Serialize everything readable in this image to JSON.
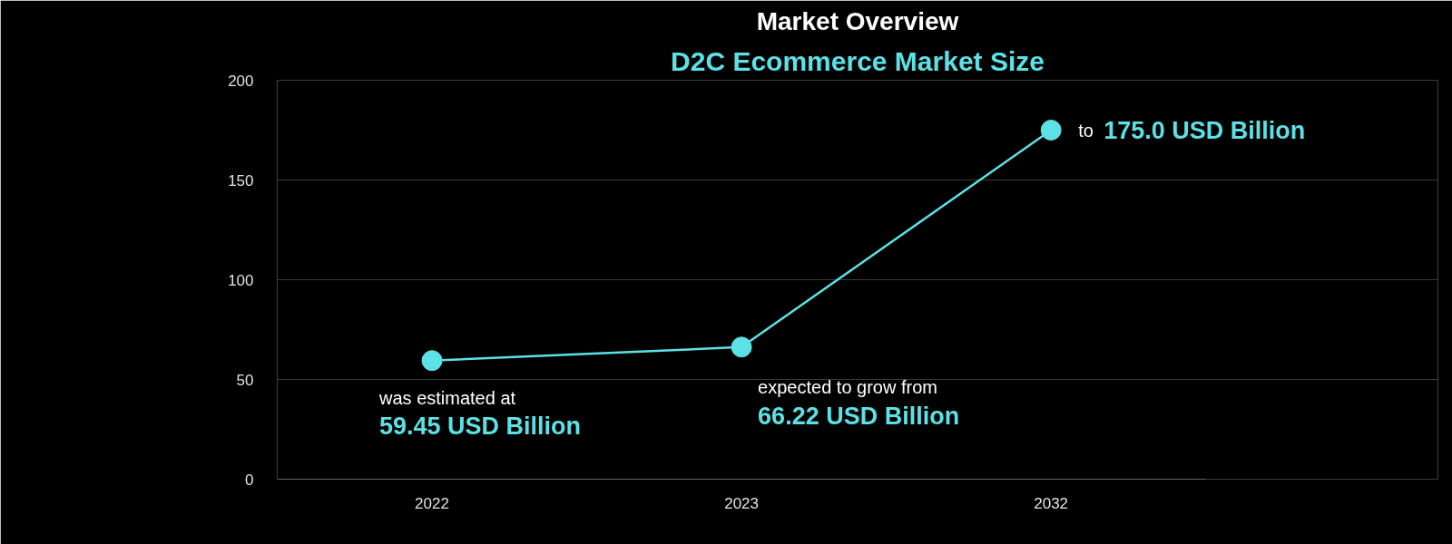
{
  "chart_data": {
    "type": "line",
    "title": "Market Overview",
    "subtitle": "D2C Ecommerce Market Size",
    "categories": [
      "2022",
      "2023",
      "2032"
    ],
    "series": [
      {
        "color": "#5ce1e6",
        "values": [
          59.45,
          66.22,
          175.0
        ],
        "value_labels": [
          "59.45 USD Billion",
          "66.22 USD Billion",
          "175.0 USD Billion"
        ]
      }
    ],
    "annotations": [
      {
        "text": "was estimated at",
        "x": "2022",
        "y": 59.45
      },
      {
        "text": "expected to grow from",
        "x": "2023",
        "y": 66.22
      },
      {
        "text": "to",
        "x": "2032",
        "y": 175.0
      }
    ],
    "ylim": [
      0,
      200
    ],
    "yticks": [
      0,
      50,
      100,
      150,
      200
    ],
    "grid": "y",
    "marker": "circle",
    "line_style": "solid"
  }
}
